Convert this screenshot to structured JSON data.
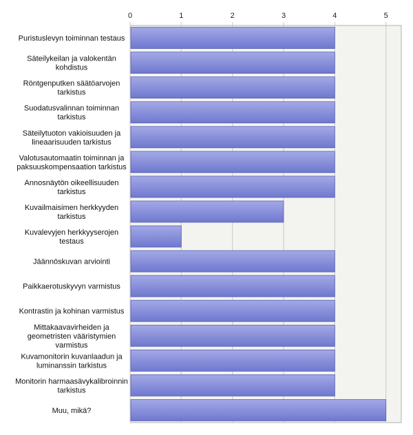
{
  "chart_data": {
    "type": "bar",
    "orientation": "horizontal",
    "title": "",
    "xlabel": "",
    "ylabel": "",
    "xlim": [
      0,
      5.3
    ],
    "ticks": [
      "0",
      "1",
      "2",
      "3",
      "4",
      "5"
    ],
    "tick_values": [
      0,
      1,
      2,
      3,
      4,
      5
    ],
    "grid": true,
    "categories": [
      "Puristuslevyn toiminnan testaus",
      "Säteilykeilan ja valokentän kohdistus",
      "Röntgenputken säätöarvojen tarkistus",
      "Suodatusvalinnan toiminnan tarkistus",
      "Säteilytuoton vakioisuuden ja lineaarisuuden tarkistus",
      "Valotusautomaatin toiminnan ja paksuuskompensaation tarkistus",
      "Annosnäytön oikeellisuuden tarkistus",
      "Kuvailmaisimen herkkyyden tarkistus",
      "Kuvalevyjen herkkyyserojen testaus",
      "Jäännöskuvan arviointi",
      "Paikkaerotuskyvyn varmistus",
      "Kontrastin ja kohinan varmistus",
      "Mittakaavavirheiden ja geometristen vääristymien varmistus",
      "Kuvamonitorin kuvanlaadun ja luminanssin tarkistus",
      "Monitorin harmaasävykalibroinnin tarkistus",
      "Muu, mikä?"
    ],
    "label_lines": [
      [
        "Puristuslevyn toiminnan testaus"
      ],
      [
        "Säteilykeilan ja valokentän",
        "kohdistus"
      ],
      [
        "Röntgenputken säätöarvojen",
        "tarkistus"
      ],
      [
        "Suodatusvalinnan toiminnan",
        "tarkistus"
      ],
      [
        "Säteilytuoton vakioisuuden ja",
        "lineaarisuuden tarkistus"
      ],
      [
        "Valotusautomaatin toiminnan ja",
        "paksuuskompensaation tarkistus"
      ],
      [
        "Annosnäytön oikeellisuuden",
        "tarkistus"
      ],
      [
        "Kuvailmaisimen herkkyyden",
        "tarkistus"
      ],
      [
        "Kuvalevyjen herkkyyserojen",
        "testaus"
      ],
      [
        "Jäännöskuvan arviointi"
      ],
      [
        "Paikkaerotuskyvyn varmistus"
      ],
      [
        "Kontrastin ja kohinan varmistus"
      ],
      [
        "Mittakaavavirheiden ja",
        "geometristen vääristymien",
        "varmistus"
      ],
      [
        "Kuvamonitorin kuvanlaadun ja",
        "luminanssin tarkistus"
      ],
      [
        "Monitorin harmaasävykalibroinnin",
        "tarkistus"
      ],
      [
        "Muu, mikä?"
      ]
    ],
    "values": [
      4,
      4,
      4,
      4,
      4,
      4,
      4,
      3,
      1,
      4,
      4,
      4,
      4,
      4,
      4,
      5
    ],
    "colors": {
      "bar_fill_top": "#a3a9e6",
      "bar_fill_bottom": "#6f78cf",
      "bar_stroke": "#5a62b3",
      "plot_bg": "#f3f4ef",
      "grid": "#c8c8c8"
    }
  }
}
